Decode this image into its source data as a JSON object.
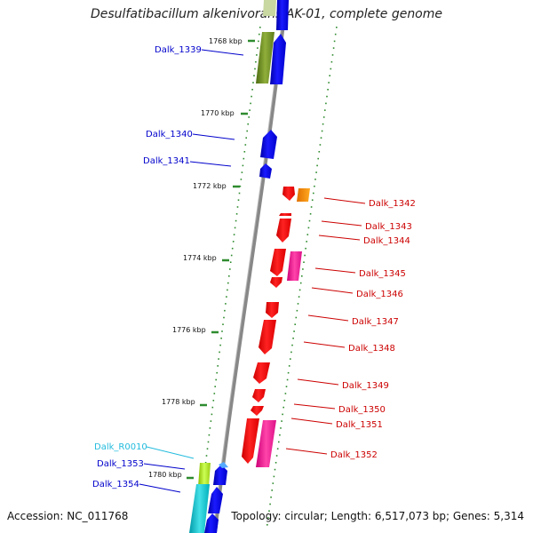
{
  "title": "Desulfatibacillum alkenivorans AK-01, complete genome",
  "footer": {
    "accession": "Accession: NC_011768",
    "summary": "Topology: circular; Length: 6,517,073 bp; Genes: 5,314"
  },
  "colors": {
    "minus_label": "#0000cc",
    "plus_label": "#cc0000",
    "rna_label": "#22bbdd",
    "backbone": "#888888",
    "tick_dash": "#2e8b2e"
  },
  "ruler": [
    {
      "label": "1768 kbp"
    },
    {
      "label": "1770 kbp"
    },
    {
      "label": "1772 kbp"
    },
    {
      "label": "1774 kbp"
    },
    {
      "label": "1776 kbp"
    },
    {
      "label": "1778 kbp"
    },
    {
      "label": "1780 kbp"
    }
  ],
  "left_labels": [
    {
      "label": "Dalk_1339",
      "color": "#0000cc"
    },
    {
      "label": "Dalk_1340",
      "color": "#0000cc"
    },
    {
      "label": "Dalk_1341",
      "color": "#0000cc"
    },
    {
      "label": "Dalk_R0010",
      "color": "#22bbdd"
    },
    {
      "label": "Dalk_1353",
      "color": "#0000cc"
    },
    {
      "label": "Dalk_1354",
      "color": "#0000cc"
    }
  ],
  "right_labels": [
    {
      "label": "Dalk_1342"
    },
    {
      "label": "Dalk_1343"
    },
    {
      "label": "Dalk_1344"
    },
    {
      "label": "Dalk_1345"
    },
    {
      "label": "Dalk_1346"
    },
    {
      "label": "Dalk_1347"
    },
    {
      "label": "Dalk_1348"
    },
    {
      "label": "Dalk_1349"
    },
    {
      "label": "Dalk_1350"
    },
    {
      "label": "Dalk_1351"
    },
    {
      "label": "Dalk_1352"
    }
  ]
}
